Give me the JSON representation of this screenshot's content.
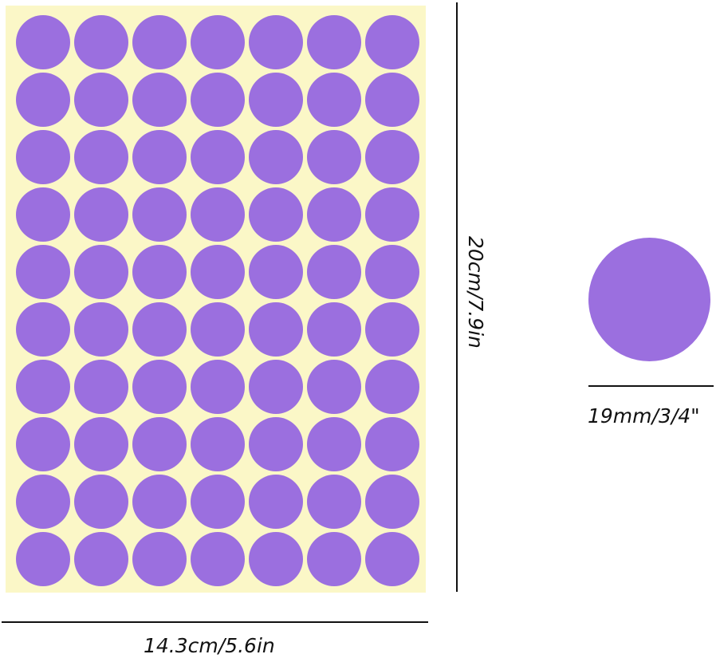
{
  "sticker_sheet": {
    "rows": 10,
    "columns": 7,
    "dot_color": "#9b6fdf",
    "backing_color": "#fbf7c7"
  },
  "dimensions": {
    "sheet_width": "14.3cm/5.6in",
    "sheet_height": "20cm/7.9in",
    "dot_diameter": "19mm/3/4\""
  },
  "single_dot": {
    "color": "#9b6fdf"
  }
}
